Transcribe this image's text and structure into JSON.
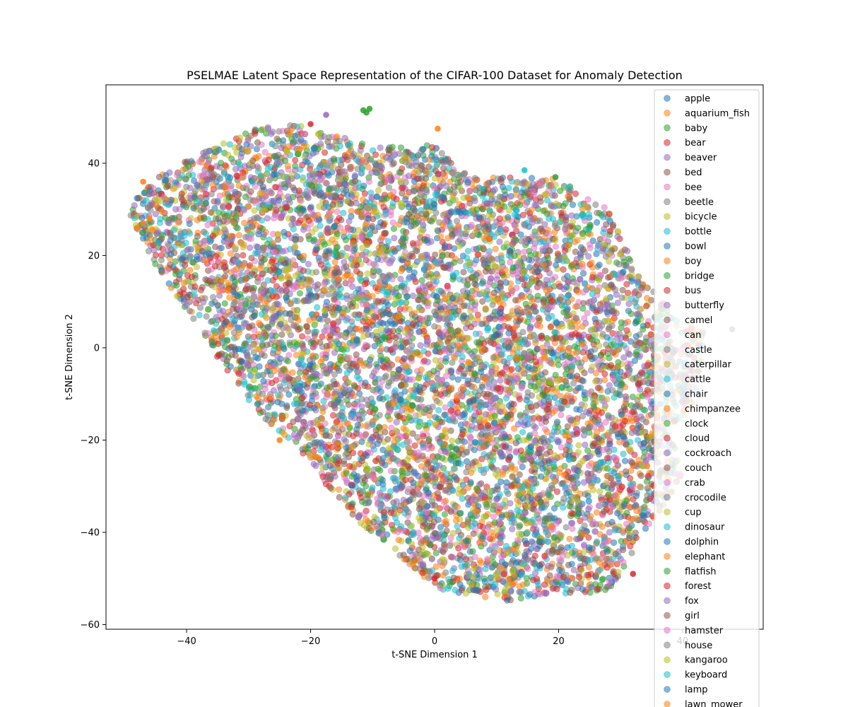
{
  "chart_data": {
    "type": "scatter",
    "title": "PSELMAE Latent Space Representation of the CIFAR-100 Dataset for Anomaly Detection",
    "xlabel": "t-SNE Dimension 1",
    "ylabel": "t-SNE Dimension 2",
    "xlim": [
      -53,
      53
    ],
    "ylim": [
      -61,
      57
    ],
    "xticks": [
      -40,
      -20,
      0,
      20,
      40
    ],
    "yticks": [
      -60,
      -40,
      -20,
      0,
      20,
      40
    ],
    "xtick_labels": [
      "−40",
      "−20",
      "0",
      "20",
      "40"
    ],
    "ytick_labels": [
      "−60",
      "−40",
      "−20",
      "0",
      "20",
      "40"
    ],
    "grid": false,
    "legend_position": "top-right",
    "marker_alpha": 0.55,
    "palette": [
      "#1f77b4",
      "#ff7f0e",
      "#2ca02c",
      "#d62728",
      "#9467bd",
      "#8c564b",
      "#e377c2",
      "#7f7f7f",
      "#bcbd22",
      "#17becf"
    ],
    "series_names": [
      "apple",
      "aquarium_fish",
      "baby",
      "bear",
      "beaver",
      "bed",
      "bee",
      "beetle",
      "bicycle",
      "bottle",
      "bowl",
      "boy",
      "bridge",
      "bus",
      "butterfly",
      "camel",
      "can",
      "castle",
      "caterpillar",
      "cattle",
      "chair",
      "chimpanzee",
      "clock",
      "cloud",
      "cockroach",
      "couch",
      "crab",
      "crocodile",
      "cup",
      "dinosaur",
      "dolphin",
      "elephant",
      "flatfish",
      "forest",
      "fox",
      "girl",
      "hamster",
      "house",
      "kangaroo",
      "keyboard",
      "lamp",
      "lawn_mower"
    ],
    "cloud_shape": {
      "outline": [
        [
          -49,
          31
        ],
        [
          -44,
          38
        ],
        [
          -38,
          42
        ],
        [
          -30,
          47
        ],
        [
          -24,
          49
        ],
        [
          -16,
          46
        ],
        [
          -10,
          44
        ],
        [
          0,
          44
        ],
        [
          3,
          40
        ],
        [
          8,
          37
        ],
        [
          20,
          37
        ],
        [
          28,
          30
        ],
        [
          33,
          16
        ],
        [
          40,
          5
        ],
        [
          44,
          3
        ],
        [
          42,
          -12
        ],
        [
          38,
          -18
        ],
        [
          40,
          -28
        ],
        [
          34,
          -40
        ],
        [
          28,
          -53
        ],
        [
          10,
          -55
        ],
        [
          0,
          -52
        ],
        [
          -8,
          -42
        ],
        [
          -14,
          -36
        ],
        [
          -22,
          -22
        ],
        [
          -28,
          -15
        ],
        [
          -33,
          -6
        ],
        [
          -40,
          8
        ],
        [
          -45,
          18
        ],
        [
          -49,
          28
        ]
      ],
      "points_per_series": 190,
      "seed": 42
    },
    "highlighted_points": [
      {
        "x": -11.5,
        "y": 51.5,
        "color": "#2ca02c"
      },
      {
        "x": -11,
        "y": 51,
        "color": "#2ca02c"
      },
      {
        "x": -10.5,
        "y": 51.8,
        "color": "#2ca02c"
      },
      {
        "x": -20,
        "y": 48.5,
        "color": "#d62728"
      },
      {
        "x": 0.5,
        "y": 47.5,
        "color": "#ff7f0e"
      },
      {
        "x": -17.5,
        "y": 50.5,
        "color": "#9467bd"
      },
      {
        "x": -25,
        "y": -20,
        "color": "#ff7f0e"
      },
      {
        "x": 0,
        "y": -50,
        "color": "#d62728"
      },
      {
        "x": 48,
        "y": 4,
        "color": "#7f7f7f"
      },
      {
        "x": 14.5,
        "y": 38.5,
        "color": "#17becf"
      },
      {
        "x": 19.5,
        "y": 37,
        "color": "#2ca02c"
      },
      {
        "x": 32,
        "y": -49,
        "color": "#d62728"
      },
      {
        "x": -47,
        "y": 36,
        "color": "#ff7f0e"
      },
      {
        "x": -48,
        "y": 26,
        "color": "#ff7f0e"
      },
      {
        "x": -47,
        "y": 27,
        "color": "#ff7f0e"
      },
      {
        "x": -46,
        "y": 28,
        "color": "#ff7f0e"
      }
    ]
  }
}
